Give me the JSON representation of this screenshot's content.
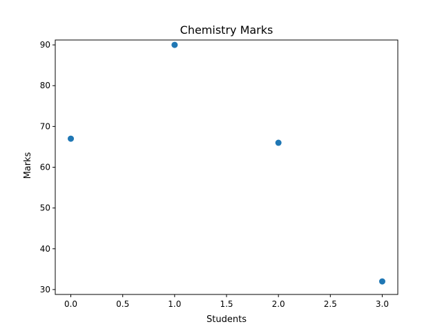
{
  "chart_data": {
    "type": "scatter",
    "title": "Chemistry Marks",
    "xlabel": "Students",
    "ylabel": "Marks",
    "x": [
      0,
      1,
      2,
      3
    ],
    "y": [
      67,
      90,
      66,
      32
    ],
    "xlim": [
      -0.15,
      3.15
    ],
    "ylim": [
      28.8,
      91.2
    ],
    "xticks": [
      0,
      0.5,
      1,
      1.5,
      2,
      2.5,
      3
    ],
    "xtick_labels": [
      "0.0",
      "0.5",
      "1.0",
      "1.5",
      "2.0",
      "2.5",
      "3.0"
    ],
    "yticks": [
      30,
      40,
      50,
      60,
      70,
      80,
      90
    ],
    "ytick_labels": [
      "30",
      "40",
      "50",
      "60",
      "70",
      "80",
      "90"
    ],
    "grid": false,
    "marker_color": "#1f77b4"
  }
}
